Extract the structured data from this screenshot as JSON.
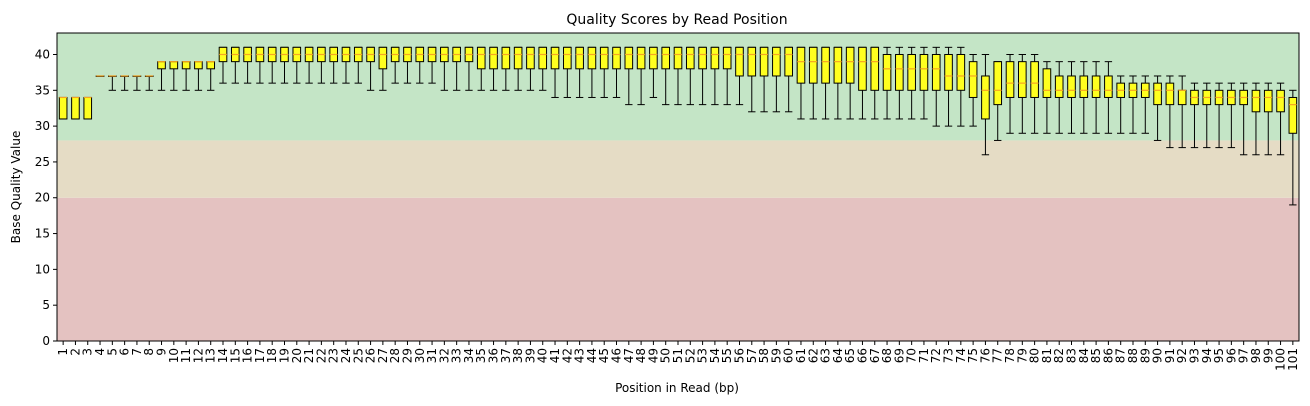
{
  "chart_data": {
    "type": "box",
    "title": "Quality Scores by Read Position",
    "xlabel": "Position in Read (bp)",
    "ylabel": "Base Quality Value",
    "ylim": [
      0,
      43
    ],
    "yticks": [
      0,
      5,
      10,
      15,
      20,
      25,
      30,
      35,
      40
    ],
    "bands": [
      {
        "from": 0,
        "to": 20,
        "color": "#e4c2c1"
      },
      {
        "from": 20,
        "to": 28,
        "color": "#e5dcc5"
      },
      {
        "from": 28,
        "to": 43,
        "color": "#c4e5c6"
      }
    ],
    "box_color": "#ffff1f",
    "median_color": "#f5a623",
    "categories": [
      "1",
      "2",
      "3",
      "4",
      "5",
      "6",
      "7",
      "8",
      "9",
      "10",
      "11",
      "12",
      "13",
      "14",
      "15",
      "16",
      "17",
      "18",
      "19",
      "20",
      "21",
      "22",
      "23",
      "24",
      "25",
      "26",
      "27",
      "28",
      "29",
      "30",
      "31",
      "32",
      "33",
      "34",
      "35",
      "36",
      "37",
      "38",
      "39",
      "40",
      "41",
      "42",
      "43",
      "44",
      "45",
      "46",
      "47",
      "48",
      "49",
      "50",
      "51",
      "52",
      "53",
      "54",
      "55",
      "56",
      "57",
      "58",
      "59",
      "60",
      "61",
      "62",
      "63",
      "64",
      "65",
      "66",
      "67",
      "68",
      "69",
      "70",
      "71",
      "72",
      "73",
      "74",
      "75",
      "76",
      "77",
      "78",
      "79",
      "80",
      "81",
      "82",
      "83",
      "84",
      "85",
      "86",
      "87",
      "88",
      "89",
      "90",
      "91",
      "92",
      "93",
      "94",
      "95",
      "96",
      "97",
      "98",
      "99",
      "100",
      "101"
    ],
    "boxes": [
      {
        "whislo": 31,
        "q1": 31,
        "med": 34,
        "q3": 34,
        "whishi": 34
      },
      {
        "whislo": 31,
        "q1": 31,
        "med": 34,
        "q3": 34,
        "whishi": 34
      },
      {
        "whislo": 31,
        "q1": 31,
        "med": 34,
        "q3": 34,
        "whishi": 34
      },
      {
        "whislo": 37,
        "q1": 37,
        "med": 37,
        "q3": 37,
        "whishi": 37
      },
      {
        "whislo": 35,
        "q1": 37,
        "med": 37,
        "q3": 37,
        "whishi": 37
      },
      {
        "whislo": 35,
        "q1": 37,
        "med": 37,
        "q3": 37,
        "whishi": 37
      },
      {
        "whislo": 35,
        "q1": 37,
        "med": 37,
        "q3": 37,
        "whishi": 37
      },
      {
        "whislo": 35,
        "q1": 37,
        "med": 37,
        "q3": 37,
        "whishi": 37
      },
      {
        "whislo": 35,
        "q1": 38,
        "med": 39,
        "q3": 39,
        "whishi": 39
      },
      {
        "whislo": 35,
        "q1": 38,
        "med": 39,
        "q3": 39,
        "whishi": 39
      },
      {
        "whislo": 35,
        "q1": 38,
        "med": 39,
        "q3": 39,
        "whishi": 39
      },
      {
        "whislo": 35,
        "q1": 38,
        "med": 39,
        "q3": 39,
        "whishi": 39
      },
      {
        "whislo": 35,
        "q1": 38,
        "med": 39,
        "q3": 39,
        "whishi": 39
      },
      {
        "whislo": 36,
        "q1": 39,
        "med": 40,
        "q3": 41,
        "whishi": 41
      },
      {
        "whislo": 36,
        "q1": 39,
        "med": 40,
        "q3": 41,
        "whishi": 41
      },
      {
        "whislo": 36,
        "q1": 39,
        "med": 40,
        "q3": 41,
        "whishi": 41
      },
      {
        "whislo": 36,
        "q1": 39,
        "med": 40,
        "q3": 41,
        "whishi": 41
      },
      {
        "whislo": 36,
        "q1": 39,
        "med": 40,
        "q3": 41,
        "whishi": 41
      },
      {
        "whislo": 36,
        "q1": 39,
        "med": 40,
        "q3": 41,
        "whishi": 41
      },
      {
        "whislo": 36,
        "q1": 39,
        "med": 40,
        "q3": 41,
        "whishi": 41
      },
      {
        "whislo": 36,
        "q1": 39,
        "med": 40,
        "q3": 41,
        "whishi": 41
      },
      {
        "whislo": 36,
        "q1": 39,
        "med": 40,
        "q3": 41,
        "whishi": 41
      },
      {
        "whislo": 36,
        "q1": 39,
        "med": 40,
        "q3": 41,
        "whishi": 41
      },
      {
        "whislo": 36,
        "q1": 39,
        "med": 40,
        "q3": 41,
        "whishi": 41
      },
      {
        "whislo": 36,
        "q1": 39,
        "med": 40,
        "q3": 41,
        "whishi": 41
      },
      {
        "whislo": 35,
        "q1": 39,
        "med": 40,
        "q3": 41,
        "whishi": 41
      },
      {
        "whislo": 35,
        "q1": 38,
        "med": 40,
        "q3": 41,
        "whishi": 41
      },
      {
        "whislo": 36,
        "q1": 39,
        "med": 40,
        "q3": 41,
        "whishi": 41
      },
      {
        "whislo": 36,
        "q1": 39,
        "med": 40,
        "q3": 41,
        "whishi": 41
      },
      {
        "whislo": 36,
        "q1": 39,
        "med": 40,
        "q3": 41,
        "whishi": 41
      },
      {
        "whislo": 36,
        "q1": 39,
        "med": 40,
        "q3": 41,
        "whishi": 41
      },
      {
        "whislo": 35,
        "q1": 39,
        "med": 40,
        "q3": 41,
        "whishi": 41
      },
      {
        "whislo": 35,
        "q1": 39,
        "med": 40,
        "q3": 41,
        "whishi": 41
      },
      {
        "whislo": 35,
        "q1": 39,
        "med": 40,
        "q3": 41,
        "whishi": 41
      },
      {
        "whislo": 35,
        "q1": 38,
        "med": 40,
        "q3": 41,
        "whishi": 41
      },
      {
        "whislo": 35,
        "q1": 38,
        "med": 40,
        "q3": 41,
        "whishi": 41
      },
      {
        "whislo": 35,
        "q1": 38,
        "med": 40,
        "q3": 41,
        "whishi": 41
      },
      {
        "whislo": 35,
        "q1": 38,
        "med": 40,
        "q3": 41,
        "whishi": 41
      },
      {
        "whislo": 35,
        "q1": 38,
        "med": 40,
        "q3": 41,
        "whishi": 41
      },
      {
        "whislo": 35,
        "q1": 38,
        "med": 40,
        "q3": 41,
        "whishi": 41
      },
      {
        "whislo": 34,
        "q1": 38,
        "med": 40,
        "q3": 41,
        "whishi": 41
      },
      {
        "whislo": 34,
        "q1": 38,
        "med": 40,
        "q3": 41,
        "whishi": 41
      },
      {
        "whislo": 34,
        "q1": 38,
        "med": 40,
        "q3": 41,
        "whishi": 41
      },
      {
        "whislo": 34,
        "q1": 38,
        "med": 40,
        "q3": 41,
        "whishi": 41
      },
      {
        "whislo": 34,
        "q1": 38,
        "med": 40,
        "q3": 41,
        "whishi": 41
      },
      {
        "whislo": 34,
        "q1": 38,
        "med": 40,
        "q3": 41,
        "whishi": 41
      },
      {
        "whislo": 33,
        "q1": 38,
        "med": 40,
        "q3": 41,
        "whishi": 41
      },
      {
        "whislo": 33,
        "q1": 38,
        "med": 40,
        "q3": 41,
        "whishi": 41
      },
      {
        "whislo": 34,
        "q1": 38,
        "med": 40,
        "q3": 41,
        "whishi": 41
      },
      {
        "whislo": 33,
        "q1": 38,
        "med": 40,
        "q3": 41,
        "whishi": 41
      },
      {
        "whislo": 33,
        "q1": 38,
        "med": 40,
        "q3": 41,
        "whishi": 41
      },
      {
        "whislo": 33,
        "q1": 38,
        "med": 40,
        "q3": 41,
        "whishi": 41
      },
      {
        "whislo": 33,
        "q1": 38,
        "med": 40,
        "q3": 41,
        "whishi": 41
      },
      {
        "whislo": 33,
        "q1": 38,
        "med": 40,
        "q3": 41,
        "whishi": 41
      },
      {
        "whislo": 33,
        "q1": 38,
        "med": 40,
        "q3": 41,
        "whishi": 41
      },
      {
        "whislo": 33,
        "q1": 37,
        "med": 40,
        "q3": 41,
        "whishi": 41
      },
      {
        "whislo": 32,
        "q1": 37,
        "med": 40,
        "q3": 41,
        "whishi": 41
      },
      {
        "whislo": 32,
        "q1": 37,
        "med": 40,
        "q3": 41,
        "whishi": 41
      },
      {
        "whislo": 32,
        "q1": 37,
        "med": 40,
        "q3": 41,
        "whishi": 41
      },
      {
        "whislo": 32,
        "q1": 37,
        "med": 40,
        "q3": 41,
        "whishi": 41
      },
      {
        "whislo": 31,
        "q1": 36,
        "med": 39,
        "q3": 41,
        "whishi": 41
      },
      {
        "whislo": 31,
        "q1": 36,
        "med": 39,
        "q3": 41,
        "whishi": 41
      },
      {
        "whislo": 31,
        "q1": 36,
        "med": 39,
        "q3": 41,
        "whishi": 41
      },
      {
        "whislo": 31,
        "q1": 36,
        "med": 39,
        "q3": 41,
        "whishi": 41
      },
      {
        "whislo": 31,
        "q1": 36,
        "med": 39,
        "q3": 41,
        "whishi": 41
      },
      {
        "whislo": 31,
        "q1": 35,
        "med": 39,
        "q3": 41,
        "whishi": 41
      },
      {
        "whislo": 31,
        "q1": 35,
        "med": 39,
        "q3": 41,
        "whishi": 41
      },
      {
        "whislo": 31,
        "q1": 35,
        "med": 38,
        "q3": 40,
        "whishi": 41
      },
      {
        "whislo": 31,
        "q1": 35,
        "med": 38,
        "q3": 40,
        "whishi": 41
      },
      {
        "whislo": 31,
        "q1": 35,
        "med": 38,
        "q3": 40,
        "whishi": 41
      },
      {
        "whislo": 31,
        "q1": 35,
        "med": 38,
        "q3": 40,
        "whishi": 41
      },
      {
        "whislo": 30,
        "q1": 35,
        "med": 38,
        "q3": 40,
        "whishi": 41
      },
      {
        "whislo": 30,
        "q1": 35,
        "med": 37,
        "q3": 40,
        "whishi": 41
      },
      {
        "whislo": 30,
        "q1": 35,
        "med": 37,
        "q3": 40,
        "whishi": 41
      },
      {
        "whislo": 30,
        "q1": 34,
        "med": 37,
        "q3": 39,
        "whishi": 40
      },
      {
        "whislo": 26,
        "q1": 31,
        "med": 35,
        "q3": 37,
        "whishi": 40
      },
      {
        "whislo": 28,
        "q1": 33,
        "med": 35,
        "q3": 39,
        "whishi": 39
      },
      {
        "whislo": 29,
        "q1": 34,
        "med": 36,
        "q3": 39,
        "whishi": 40
      },
      {
        "whislo": 29,
        "q1": 34,
        "med": 36,
        "q3": 39,
        "whishi": 40
      },
      {
        "whislo": 29,
        "q1": 34,
        "med": 36,
        "q3": 39,
        "whishi": 40
      },
      {
        "whislo": 29,
        "q1": 34,
        "med": 35,
        "q3": 38,
        "whishi": 39
      },
      {
        "whislo": 29,
        "q1": 34,
        "med": 35,
        "q3": 37,
        "whishi": 39
      },
      {
        "whislo": 29,
        "q1": 34,
        "med": 35,
        "q3": 37,
        "whishi": 39
      },
      {
        "whislo": 29,
        "q1": 34,
        "med": 35,
        "q3": 37,
        "whishi": 39
      },
      {
        "whislo": 29,
        "q1": 34,
        "med": 35,
        "q3": 37,
        "whishi": 39
      },
      {
        "whislo": 29,
        "q1": 34,
        "med": 35,
        "q3": 37,
        "whishi": 39
      },
      {
        "whislo": 29,
        "q1": 34,
        "med": 35,
        "q3": 36,
        "whishi": 37
      },
      {
        "whislo": 29,
        "q1": 34,
        "med": 35,
        "q3": 36,
        "whishi": 37
      },
      {
        "whislo": 29,
        "q1": 34,
        "med": 35,
        "q3": 36,
        "whishi": 37
      },
      {
        "whislo": 28,
        "q1": 33,
        "med": 35,
        "q3": 36,
        "whishi": 37
      },
      {
        "whislo": 27,
        "q1": 33,
        "med": 35,
        "q3": 36,
        "whishi": 37
      },
      {
        "whislo": 27,
        "q1": 33,
        "med": 35,
        "q3": 35,
        "whishi": 37
      },
      {
        "whislo": 27,
        "q1": 33,
        "med": 34,
        "q3": 35,
        "whishi": 36
      },
      {
        "whislo": 27,
        "q1": 33,
        "med": 34,
        "q3": 35,
        "whishi": 36
      },
      {
        "whislo": 27,
        "q1": 33,
        "med": 34,
        "q3": 35,
        "whishi": 36
      },
      {
        "whislo": 27,
        "q1": 33,
        "med": 34,
        "q3": 35,
        "whishi": 36
      },
      {
        "whislo": 26,
        "q1": 33,
        "med": 34,
        "q3": 35,
        "whishi": 36
      },
      {
        "whislo": 26,
        "q1": 32,
        "med": 34,
        "q3": 35,
        "whishi": 36
      },
      {
        "whislo": 26,
        "q1": 32,
        "med": 34,
        "q3": 35,
        "whishi": 36
      },
      {
        "whislo": 26,
        "q1": 32,
        "med": 34,
        "q3": 35,
        "whishi": 36
      },
      {
        "whislo": 19,
        "q1": 29,
        "med": 33,
        "q3": 34,
        "whishi": 35
      }
    ]
  }
}
